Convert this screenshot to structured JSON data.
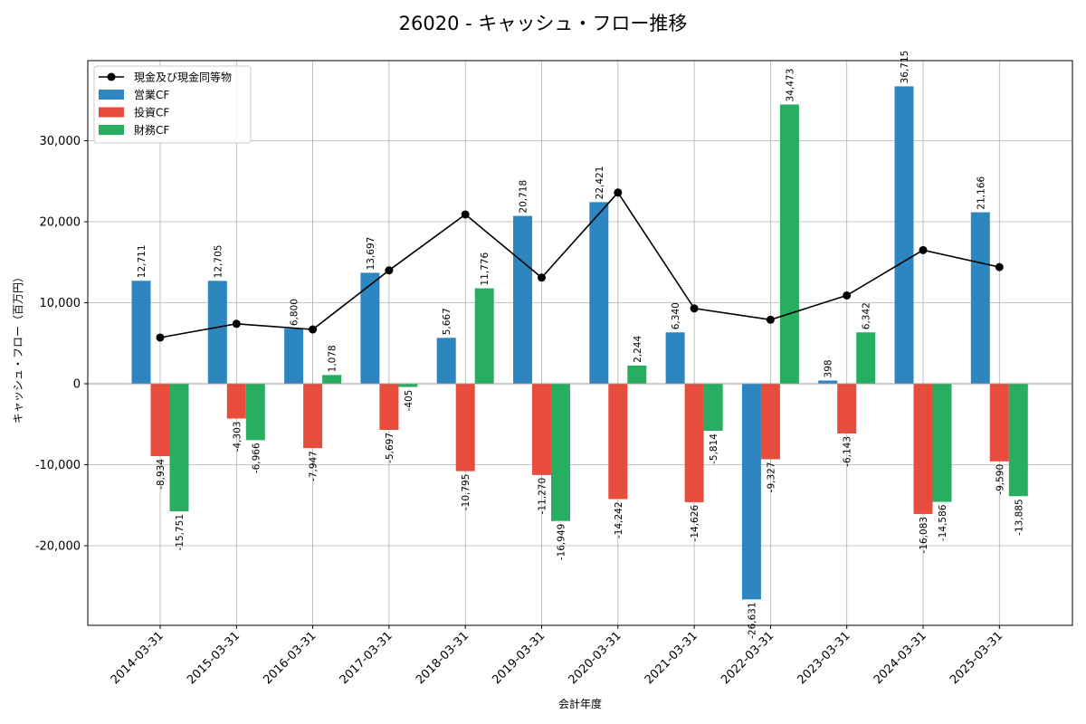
{
  "chart_data": {
    "type": "bar",
    "title": "26020 - キャッシュ・フロー推移",
    "xlabel": "会計年度",
    "ylabel": "キャッシュ・フロー（百万円）",
    "categories": [
      "2014-03-31",
      "2015-03-31",
      "2016-03-31",
      "2017-03-31",
      "2018-03-31",
      "2019-03-31",
      "2020-03-31",
      "2021-03-31",
      "2022-03-31",
      "2023-03-31",
      "2024-03-31",
      "2025-03-31"
    ],
    "ylim": [
      -30000,
      40000
    ],
    "yticks": [
      -20000,
      -10000,
      0,
      10000,
      20000,
      30000
    ],
    "ytick_labels": [
      "-20,000",
      "-10,000",
      "0",
      "10,000",
      "20,000",
      "30,000"
    ],
    "grid": true,
    "legend_position": "top-left",
    "series": [
      {
        "name": "営業CF",
        "type": "bar",
        "color": "#2e86c1",
        "values": [
          12711,
          12705,
          6800,
          13697,
          5667,
          20718,
          22421,
          6340,
          -26631,
          398,
          36715,
          21166
        ],
        "labels": [
          "12,711",
          "12,705",
          "6,800",
          "13,697",
          "5,667",
          "20,718",
          "22,421",
          "6,340",
          "-26,631",
          "398",
          "36,715",
          "21,166"
        ]
      },
      {
        "name": "投資CF",
        "type": "bar",
        "color": "#e74c3c",
        "values": [
          -8934,
          -4303,
          -7947,
          -5697,
          -10795,
          -11270,
          -14242,
          -14626,
          -9327,
          -6143,
          -16083,
          -9590
        ],
        "labels": [
          "-8,934",
          "-4,303",
          "-7,947",
          "-5,697",
          "-10,795",
          "-11,270",
          "-14,242",
          "-14,626",
          "-9,327",
          "-6,143",
          "-16,083",
          "-9,590"
        ]
      },
      {
        "name": "財務CF",
        "type": "bar",
        "color": "#27ae60",
        "values": [
          -15751,
          -6966,
          1078,
          -405,
          11776,
          -16949,
          2244,
          -5814,
          34473,
          6342,
          -14586,
          -13885
        ],
        "labels": [
          "-15,751",
          "-6,966",
          "1,078",
          "-405",
          "11,776",
          "-16,949",
          "2,244",
          "-5,814",
          "34,473",
          "6,342",
          "-14,586",
          "-13,885"
        ]
      },
      {
        "name": "現金及び現金同等物",
        "type": "line",
        "color": "#000000",
        "values": [
          5700,
          7400,
          6700,
          14000,
          20900,
          13100,
          23600,
          9300,
          7900,
          10900,
          16500,
          14400
        ]
      }
    ]
  }
}
